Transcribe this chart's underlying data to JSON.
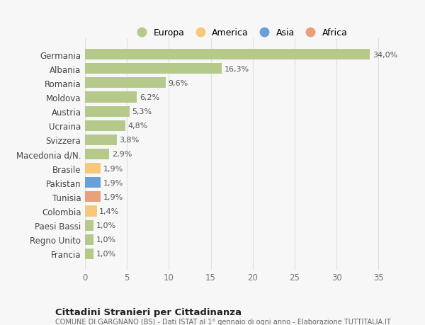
{
  "countries": [
    "Francia",
    "Regno Unito",
    "Paesi Bassi",
    "Colombia",
    "Tunisia",
    "Pakistan",
    "Brasile",
    "Macedonia d/N.",
    "Svizzera",
    "Ucraina",
    "Austria",
    "Moldova",
    "Romania",
    "Albania",
    "Germania"
  ],
  "values": [
    1.0,
    1.0,
    1.0,
    1.4,
    1.9,
    1.9,
    1.9,
    2.9,
    3.8,
    4.8,
    5.3,
    6.2,
    9.6,
    16.3,
    34.0
  ],
  "labels": [
    "1,0%",
    "1,0%",
    "1,0%",
    "1,4%",
    "1,9%",
    "1,9%",
    "1,9%",
    "2,9%",
    "3,8%",
    "4,8%",
    "5,3%",
    "6,2%",
    "9,6%",
    "16,3%",
    "34,0%"
  ],
  "colors": [
    "#b5c98a",
    "#b5c98a",
    "#b5c98a",
    "#f5c87a",
    "#e8a07a",
    "#6a9fd8",
    "#f5c87a",
    "#b5c98a",
    "#b5c98a",
    "#b5c98a",
    "#b5c98a",
    "#b5c98a",
    "#b5c98a",
    "#b5c98a",
    "#b5c98a"
  ],
  "legend_labels": [
    "Europa",
    "America",
    "Asia",
    "Africa"
  ],
  "legend_colors": [
    "#b5c98a",
    "#f5c87a",
    "#6a9fd8",
    "#e8a07a"
  ],
  "title": "Cittadini Stranieri per Cittadinanza",
  "subtitle": "COMUNE DI GARGNANO (BS) - Dati ISTAT al 1° gennaio di ogni anno - Elaborazione TUTTITALIA.IT",
  "xlim": [
    0,
    37
  ],
  "xticks": [
    0,
    5,
    10,
    15,
    20,
    25,
    30,
    35
  ],
  "bg_color": "#f7f7f7",
  "grid_color": "#e0e0e0"
}
